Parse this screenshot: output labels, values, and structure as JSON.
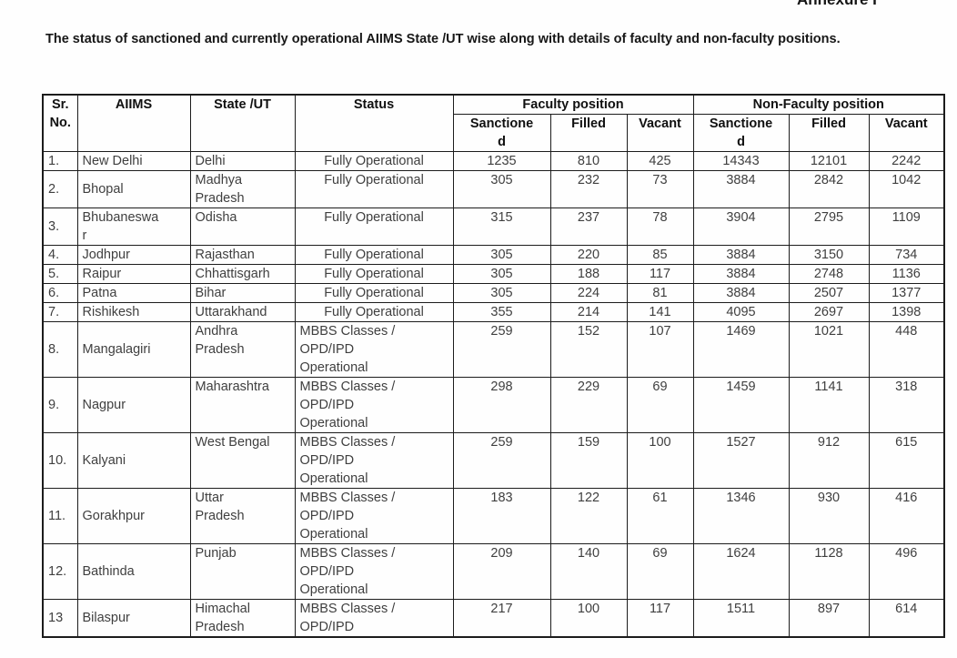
{
  "page": {
    "annexure_label": "Annexure I",
    "title": "The status of sanctioned and currently operational AIIMS State /UT wise along with details of faculty and non-faculty positions."
  },
  "table": {
    "header": {
      "sr_no": "Sr. No.",
      "aiims": "AIIMS",
      "state_ut": "State /UT",
      "status": "Status",
      "faculty_group": "Faculty position",
      "non_faculty_group": "Non-Faculty position",
      "sub_columns": [
        "Sanctioned",
        "Filled",
        "Vacant",
        "Sanctioned",
        "Filled",
        "Vacant"
      ]
    },
    "rows": [
      {
        "sr": "1.",
        "aiims": "New Delhi",
        "state": "Delhi",
        "status": "Fully Operational",
        "f_sanctioned": 1235,
        "f_filled": 810,
        "f_vacant": 425,
        "nf_sanctioned": 14343,
        "nf_filled": 12101,
        "nf_vacant": 2242
      },
      {
        "sr": "2.",
        "aiims": "Bhopal",
        "state": "Madhya Pradesh",
        "status": "Fully Operational",
        "f_sanctioned": 305,
        "f_filled": 232,
        "f_vacant": 73,
        "nf_sanctioned": 3884,
        "nf_filled": 2842,
        "nf_vacant": 1042
      },
      {
        "sr": "3.",
        "aiims": "Bhubaneswar",
        "state": "Odisha",
        "status": "Fully Operational",
        "f_sanctioned": 315,
        "f_filled": 237,
        "f_vacant": 78,
        "nf_sanctioned": 3904,
        "nf_filled": 2795,
        "nf_vacant": 1109
      },
      {
        "sr": "4.",
        "aiims": "Jodhpur",
        "state": "Rajasthan",
        "status": "Fully Operational",
        "f_sanctioned": 305,
        "f_filled": 220,
        "f_vacant": 85,
        "nf_sanctioned": 3884,
        "nf_filled": 3150,
        "nf_vacant": 734
      },
      {
        "sr": "5.",
        "aiims": "Raipur",
        "state": "Chhattisgarh",
        "status": "Fully Operational",
        "f_sanctioned": 305,
        "f_filled": 188,
        "f_vacant": 117,
        "nf_sanctioned": 3884,
        "nf_filled": 2748,
        "nf_vacant": 1136
      },
      {
        "sr": "6.",
        "aiims": "Patna",
        "state": "Bihar",
        "status": "Fully Operational",
        "f_sanctioned": 305,
        "f_filled": 224,
        "f_vacant": 81,
        "nf_sanctioned": 3884,
        "nf_filled": 2507,
        "nf_vacant": 1377
      },
      {
        "sr": "7.",
        "aiims": "Rishikesh",
        "state": "Uttarakhand",
        "status": "Fully Operational",
        "f_sanctioned": 355,
        "f_filled": 214,
        "f_vacant": 141,
        "nf_sanctioned": 4095,
        "nf_filled": 2697,
        "nf_vacant": 1398
      },
      {
        "sr": "8.",
        "aiims": "Mangalagiri",
        "state": "Andhra Pradesh",
        "status": "MBBS Classes / OPD/IPD Operational",
        "f_sanctioned": 259,
        "f_filled": 152,
        "f_vacant": 107,
        "nf_sanctioned": 1469,
        "nf_filled": 1021,
        "nf_vacant": 448
      },
      {
        "sr": "9.",
        "aiims": "Nagpur",
        "state": "Maharashtra",
        "status": "MBBS Classes / OPD/IPD Operational",
        "f_sanctioned": 298,
        "f_filled": 229,
        "f_vacant": 69,
        "nf_sanctioned": 1459,
        "nf_filled": 1141,
        "nf_vacant": 318
      },
      {
        "sr": "10.",
        "aiims": "Kalyani",
        "state": "West Bengal",
        "status": "MBBS Classes / OPD/IPD Operational",
        "f_sanctioned": 259,
        "f_filled": 159,
        "f_vacant": 100,
        "nf_sanctioned": 1527,
        "nf_filled": 912,
        "nf_vacant": 615
      },
      {
        "sr": "11.",
        "aiims": "Gorakhpur",
        "state": "Uttar Pradesh",
        "status": "MBBS Classes / OPD/IPD Operational",
        "f_sanctioned": 183,
        "f_filled": 122,
        "f_vacant": 61,
        "nf_sanctioned": 1346,
        "nf_filled": 930,
        "nf_vacant": 416
      },
      {
        "sr": "12.",
        "aiims": "Bathinda",
        "state": "Punjab",
        "status": "MBBS Classes / OPD/IPD Operational",
        "f_sanctioned": 209,
        "f_filled": 140,
        "f_vacant": 69,
        "nf_sanctioned": 1624,
        "nf_filled": 1128,
        "nf_vacant": 496
      },
      {
        "sr": "13",
        "aiims": "Bilaspur",
        "state": "Himachal Pradesh",
        "status": "MBBS Classes / OPD/IPD",
        "f_sanctioned": 217,
        "f_filled": 100,
        "f_vacant": 117,
        "nf_sanctioned": 1511,
        "nf_filled": 897,
        "nf_vacant": 614
      }
    ]
  }
}
